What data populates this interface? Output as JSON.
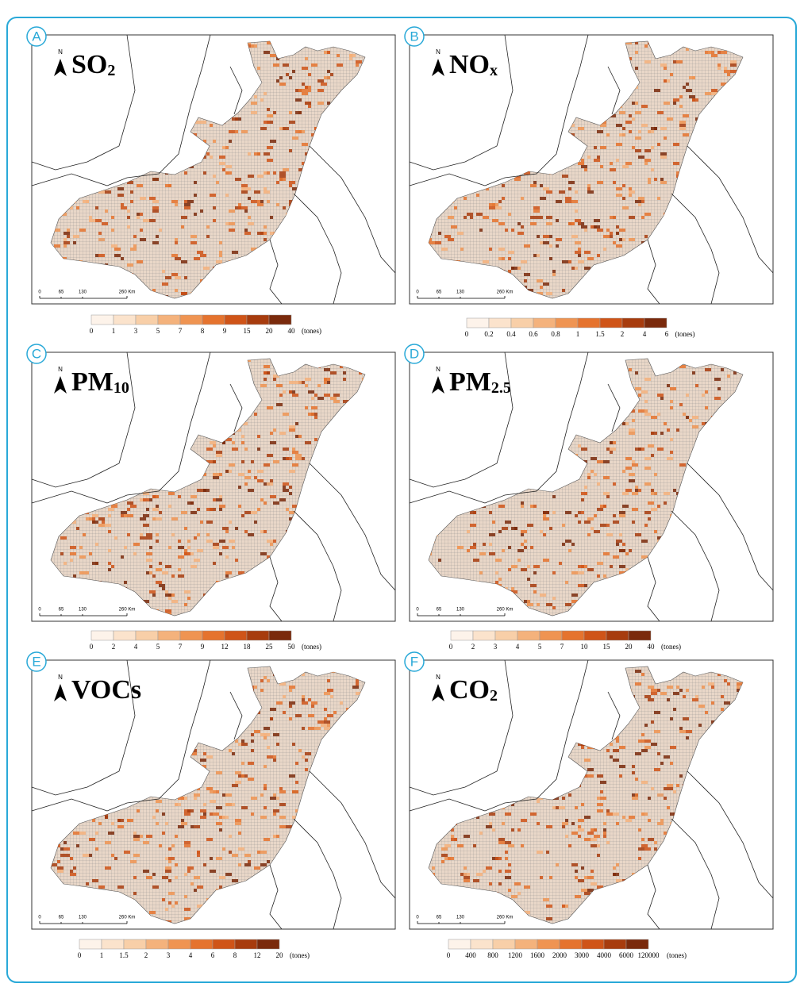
{
  "north": "N",
  "scale_bar": [
    "0",
    "65",
    "130",
    "260 Km"
  ],
  "panels": [
    {
      "letter": "A",
      "title": {
        "main": "SO",
        "sub": "2"
      },
      "legend": [
        "0",
        "1",
        "3",
        "5",
        "7",
        "8",
        "9",
        "15",
        "20",
        "40"
      ],
      "unit": "(tones)"
    },
    {
      "letter": "B",
      "title": {
        "main": "NO",
        "sub": "x"
      },
      "legend": [
        "0",
        "0.2",
        "0.4",
        "0.6",
        "0.8",
        "1",
        "1.5",
        "2",
        "4",
        "6"
      ],
      "unit": "(tones)"
    },
    {
      "letter": "C",
      "title": {
        "main": "PM",
        "sub": "10"
      },
      "legend": [
        "0",
        "2",
        "4",
        "5",
        "7",
        "9",
        "12",
        "18",
        "25",
        "50"
      ],
      "unit": "(tones)"
    },
    {
      "letter": "D",
      "title": {
        "main": "PM",
        "sub": "2.5"
      },
      "legend": [
        "0",
        "2",
        "3",
        "4",
        "5",
        "7",
        "10",
        "15",
        "20",
        "40"
      ],
      "unit": "(tones)"
    },
    {
      "letter": "E",
      "title": {
        "main": "VOCs"
      },
      "legend": [
        "0",
        "1",
        "1.5",
        "2",
        "3",
        "4",
        "6",
        "8",
        "12",
        "20"
      ],
      "unit": "(tones)"
    },
    {
      "letter": "F",
      "title": {
        "main": "CO",
        "sub": "2"
      },
      "legend": [
        "0",
        "400",
        "800",
        "1200",
        "1600",
        "2000",
        "3000",
        "4000",
        "6000",
        "120000"
      ],
      "unit": "(tones)"
    }
  ]
}
